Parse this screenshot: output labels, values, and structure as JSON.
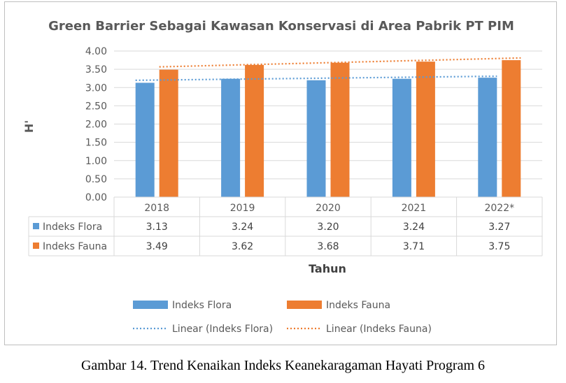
{
  "chart_data": {
    "type": "bar",
    "title": "Green Barrier Sebagai Kawasan Konservasi di Area Pabrik PT PIM",
    "ylabel": "H'",
    "xlabel": "Tahun",
    "ylim": [
      0,
      4
    ],
    "yticks": [
      "0.00",
      "0.50",
      "1.00",
      "1.50",
      "2.00",
      "2.50",
      "3.00",
      "3.50",
      "4.00"
    ],
    "grid": true,
    "categories": [
      "2018",
      "2019",
      "2020",
      "2021",
      "2022*"
    ],
    "series": [
      {
        "name": "Indeks Flora",
        "color": "#5b9bd5",
        "values": [
          3.13,
          3.24,
          3.2,
          3.24,
          3.27
        ],
        "labels": [
          "3.13",
          "3.24",
          "3.20",
          "3.24",
          "3.27"
        ]
      },
      {
        "name": "Indeks Fauna",
        "color": "#ed7d31",
        "values": [
          3.49,
          3.62,
          3.68,
          3.71,
          3.75
        ],
        "labels": [
          "3.49",
          "3.62",
          "3.68",
          "3.71",
          "3.75"
        ]
      }
    ],
    "trendlines": [
      {
        "name": "Linear (Indeks Flora)",
        "color": "#5b9bd5"
      },
      {
        "name": "Linear (Indeks Fauna)",
        "color": "#ed7d31"
      }
    ],
    "legend_position": "bottom"
  },
  "caption": "Gambar 14. Trend Kenaikan Indeks Keanekaragaman Hayati Program 6"
}
